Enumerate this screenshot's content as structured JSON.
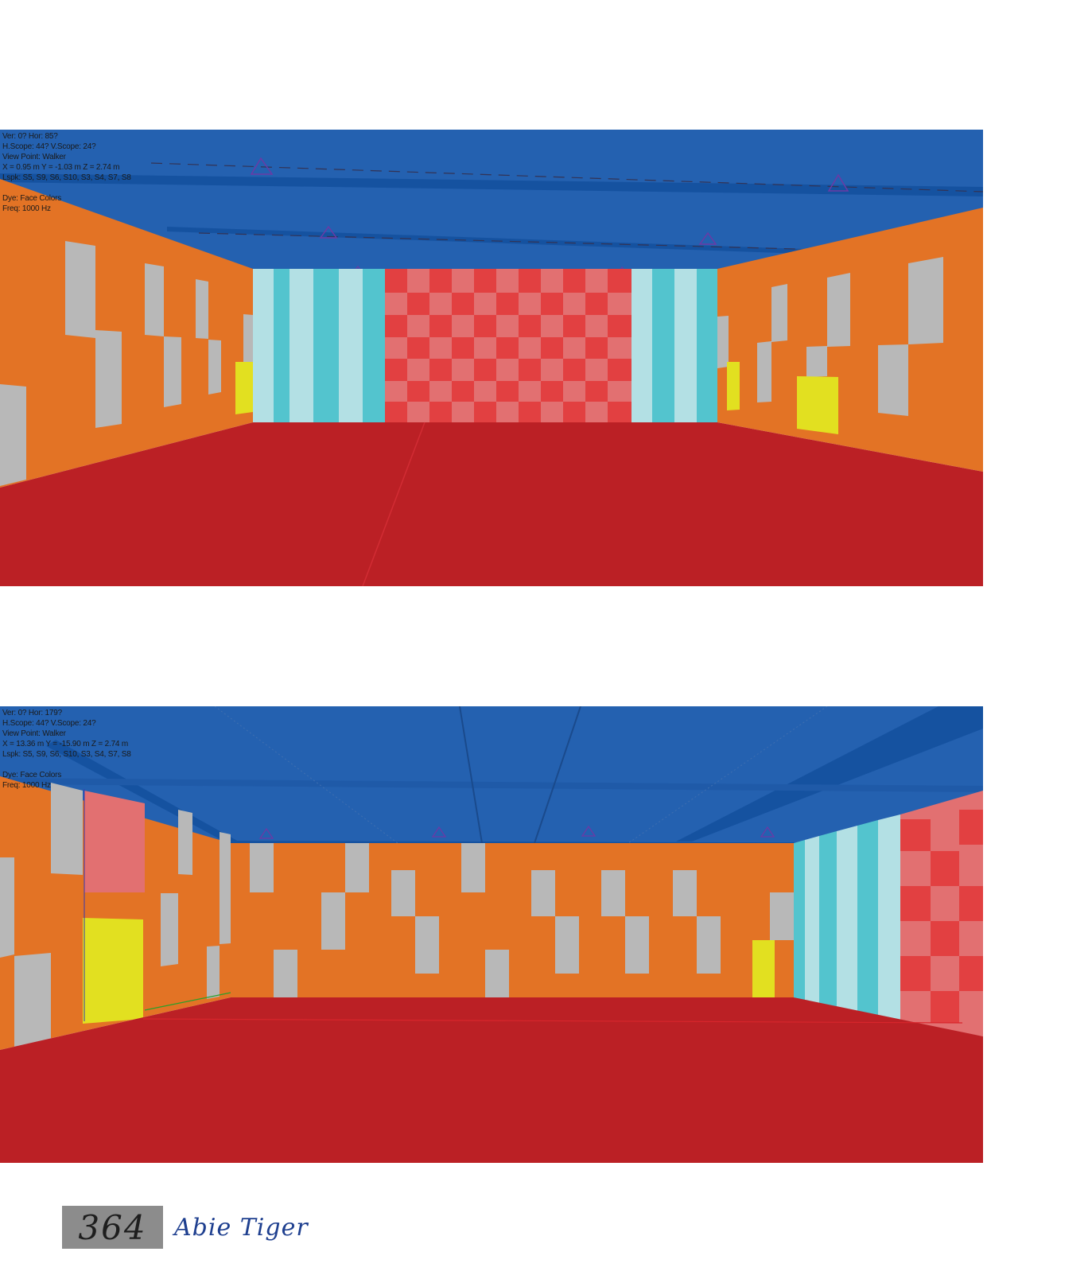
{
  "views": [
    {
      "hud": {
        "orientation": "Ver: 0?   Hor: 85?",
        "scope": "H.Scope: 44?   V.Scope: 24?",
        "view_point": "View Point: Walker",
        "coords": "X =   0.95 m   Y =  -1.03 m   Z =    2.74 m",
        "loudspeakers": "Lspk: S5, S9, S6, S10, S3, S4, S7, S8",
        "dye": "Dye: Face Colors",
        "freq": "Freq: 1000 Hz"
      }
    },
    {
      "hud": {
        "orientation": "Ver: 0?   Hor: 179?",
        "scope": "H.Scope: 44?   V.Scope: 24?",
        "view_point": "View Point: Walker",
        "coords": "X =   13.36 m   Y =  -15.90 m   Z =    2.74 m",
        "loudspeakers": "Lspk: S5, S9, S6, S10, S3, S4, S7, S8",
        "dye": "Dye: Face Colors",
        "freq": "Freq: 1000 Hz"
      }
    }
  ],
  "colors": {
    "ceiling": "#2461b0",
    "ceiling_beam": "#1552a0",
    "side_wall": "#e37325",
    "panel": "#b8b8b8",
    "door": "#e2e020",
    "floor": "#bb2025",
    "stripe_dark": "#53c4ce",
    "stripe_light": "#b3e0e4",
    "check_dark": "#e24041",
    "check_light": "#e27071"
  },
  "footer": {
    "page_number": "364",
    "author": "Abie Tiger"
  }
}
